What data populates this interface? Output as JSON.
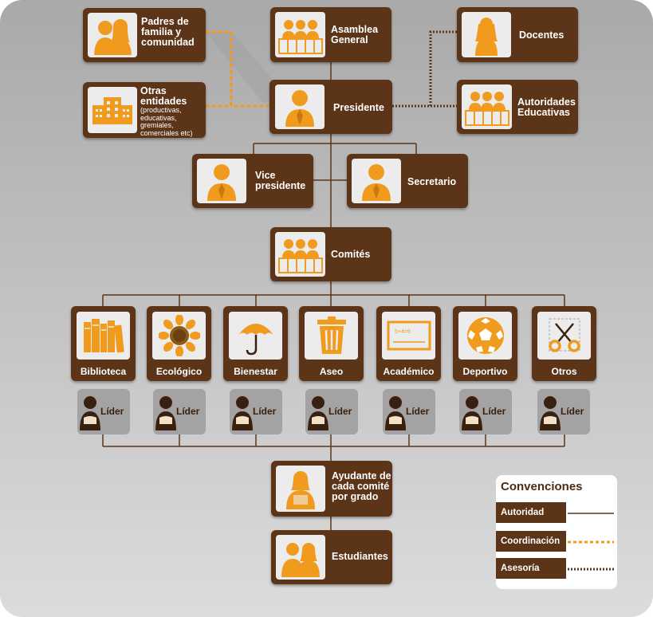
{
  "colors": {
    "authority": "#5c3418",
    "coordination": "#f09a1e",
    "advisory": "#5c3418",
    "icon_orange": "#f09a1e"
  },
  "top": {
    "padres": "Padres de\nfamilia y\ncomunidad",
    "asamblea": "Asamblea\nGeneral",
    "docentes": "Docentes",
    "otras": "Otras\nentidades",
    "otras_sub": "(productivas,\neducativas,\ngremiales,\ncomerciales etc)",
    "presidente": "Presidente",
    "autoridades": "Autoridades\nEducativas",
    "vice": "Vice\npresidente",
    "secretario": "Secretario",
    "comites": "Comités"
  },
  "committees": [
    {
      "label": "Biblioteca",
      "icon": "books-icon"
    },
    {
      "label": "Ecológico",
      "icon": "sunflower-icon"
    },
    {
      "label": "Bienestar",
      "icon": "umbrella-icon"
    },
    {
      "label": "Aseo",
      "icon": "trash-can-icon"
    },
    {
      "label": "Académico",
      "icon": "chalkboard-icon"
    },
    {
      "label": "Deportivo",
      "icon": "soccer-ball-icon"
    },
    {
      "label": "Otros",
      "icon": "scissors-icon"
    }
  ],
  "leader_label": "Líder",
  "ayudante": "Ayudante de\ncada comité\npor grado",
  "estudiantes": "Estudiantes",
  "legend": {
    "title": "Convenciones",
    "items": [
      {
        "label": "Autoridad",
        "style": "solid"
      },
      {
        "label": "Coordinación",
        "style": "dashed"
      },
      {
        "label": "Asesoría",
        "style": "dotted"
      }
    ]
  }
}
